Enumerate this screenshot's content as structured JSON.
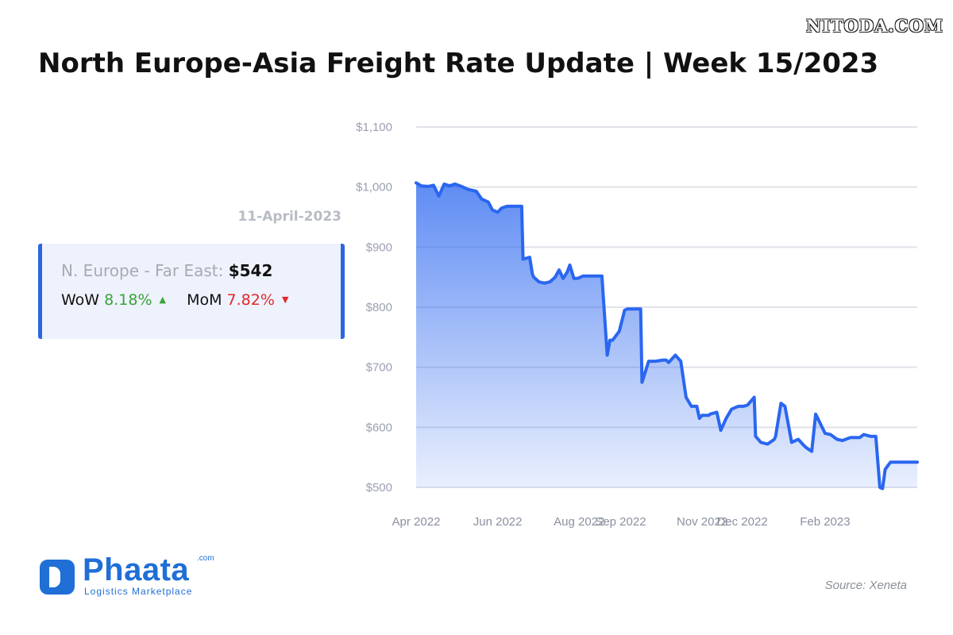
{
  "watermark": "NITODA.COM",
  "title": "North Europe-Asia Freight Rate Update | Week 15/2023",
  "date_label": "11-April-2023",
  "card": {
    "route": "N. Europe - Far East:",
    "price": "$542",
    "wow_label": "WoW",
    "wow_value": "8.18%",
    "mom_label": "MoM",
    "mom_value": "7.82%"
  },
  "brand": {
    "name": "Phaata",
    "com": ".com",
    "tagline": "Logistics Marketplace"
  },
  "source": "Source: Xeneta",
  "colors": {
    "line": "#2a66f0",
    "up": "#3aa23a",
    "down": "#e0292c",
    "brand": "#1f6fd6"
  },
  "chart_data": {
    "type": "area",
    "title": "",
    "xlabel": "",
    "ylabel": "",
    "ylim": [
      500,
      1100
    ],
    "y_ticks": [
      500,
      600,
      700,
      800,
      900,
      1000,
      1100
    ],
    "y_tick_labels": [
      "$500",
      "$600",
      "$700",
      "$800",
      "$900",
      "$1,000",
      "$1,100"
    ],
    "x_ticks": [
      "2022-04-01",
      "2022-06-01",
      "2022-08-01",
      "2022-09-01",
      "2022-11-01",
      "2022-12-01",
      "2023-02-01"
    ],
    "x_tick_labels": [
      "Apr 2022",
      "Jun 2022",
      "Aug 2022",
      "Sep 2022",
      "Nov 2022",
      "Dec 2022",
      "Feb 2023"
    ],
    "xlim": [
      "2022-04-01",
      "2023-04-11"
    ],
    "grid": true,
    "series": [
      {
        "x": [
          "2022-04-01",
          "2022-04-05",
          "2022-04-10",
          "2022-04-14",
          "2022-04-18",
          "2022-04-22",
          "2022-04-26",
          "2022-04-30",
          "2022-05-05",
          "2022-05-10",
          "2022-05-16",
          "2022-05-20",
          "2022-05-25",
          "2022-05-28",
          "2022-06-01",
          "2022-06-04",
          "2022-06-08",
          "2022-06-14",
          "2022-06-19",
          "2022-06-20",
          "2022-06-25",
          "2022-06-27",
          "2022-06-28",
          "2022-07-02",
          "2022-07-06",
          "2022-07-10",
          "2022-07-14",
          "2022-07-17",
          "2022-07-20",
          "2022-07-23",
          "2022-07-25",
          "2022-07-28",
          "2022-07-31",
          "2022-08-04",
          "2022-08-10",
          "2022-08-18",
          "2022-08-22",
          "2022-08-24",
          "2022-08-26",
          "2022-08-31",
          "2022-09-04",
          "2022-09-06",
          "2022-09-10",
          "2022-09-14",
          "2022-09-16",
          "2022-09-17",
          "2022-09-22",
          "2022-09-27",
          "2022-10-03",
          "2022-10-05",
          "2022-10-07",
          "2022-10-12",
          "2022-10-16",
          "2022-10-20",
          "2022-10-24",
          "2022-10-28",
          "2022-10-30",
          "2022-11-01",
          "2022-11-06",
          "2022-11-07",
          "2022-11-12",
          "2022-11-15",
          "2022-11-19",
          "2022-11-23",
          "2022-11-25",
          "2022-11-28",
          "2022-12-02",
          "2022-12-05",
          "2022-12-10",
          "2022-12-11",
          "2022-12-15",
          "2022-12-20",
          "2022-12-25",
          "2022-12-26",
          "2022-12-30",
          "2023-01-02",
          "2023-01-07",
          "2023-01-12",
          "2023-01-16",
          "2023-01-18",
          "2023-01-22",
          "2023-01-25",
          "2023-02-01",
          "2023-02-05",
          "2023-02-10",
          "2023-02-14",
          "2023-02-20",
          "2023-02-27",
          "2023-03-02",
          "2023-03-07",
          "2023-03-11",
          "2023-03-14",
          "2023-03-16",
          "2023-03-18",
          "2023-03-22",
          "2023-03-28",
          "2023-04-02",
          "2023-04-05",
          "2023-04-08",
          "2023-04-11"
        ],
        "values": [
          1007,
          1002,
          1001,
          1003,
          985,
          1005,
          1002,
          1005,
          1001,
          996,
          993,
          980,
          975,
          962,
          958,
          965,
          968,
          968,
          968,
          880,
          883,
          855,
          850,
          842,
          840,
          842,
          850,
          862,
          848,
          858,
          870,
          848,
          848,
          852,
          852,
          852,
          720,
          745,
          745,
          760,
          795,
          797,
          797,
          797,
          797,
          675,
          710,
          710,
          712,
          712,
          708,
          720,
          710,
          650,
          635,
          635,
          615,
          620,
          620,
          622,
          625,
          595,
          615,
          630,
          632,
          635,
          635,
          637,
          650,
          585,
          575,
          572,
          580,
          585,
          640,
          635,
          575,
          580,
          570,
          566,
          560,
          622,
          590,
          588,
          580,
          578,
          583,
          583,
          588,
          585,
          585,
          500,
          498,
          530,
          542,
          542,
          542,
          542,
          542,
          542
        ]
      }
    ]
  }
}
